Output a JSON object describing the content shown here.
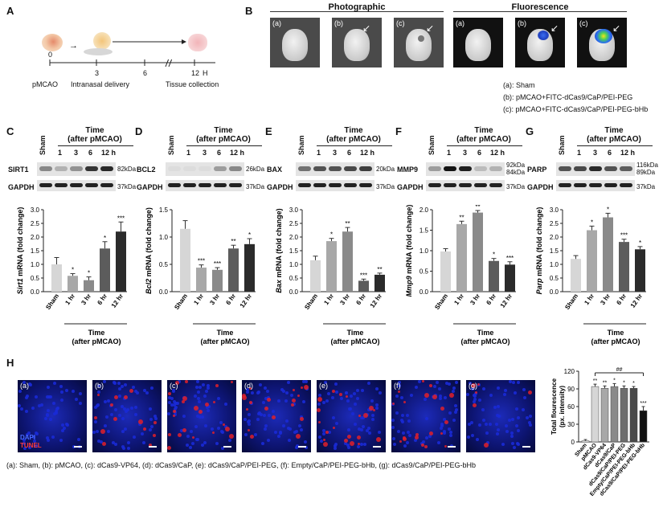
{
  "panel_labels": {
    "A": "A",
    "B": "B",
    "C": "C",
    "D": "D",
    "E": "E",
    "F": "F",
    "G": "G",
    "H": "H"
  },
  "timeline": {
    "ticks": [
      "0",
      "3",
      "6",
      "12"
    ],
    "unit": "H",
    "events": [
      "pMCAO",
      "Intranasal delivery",
      "Tissue collection"
    ]
  },
  "panel_b": {
    "photographic_title": "Photographic",
    "fluorescence_title": "Fluorescence",
    "image_labels": [
      "(a)",
      "(b)",
      "(c)"
    ],
    "legend": [
      "(a): Sham",
      "(b): pMCAO+FITC-dCas9/CaP/PEI-PEG",
      "(c): pMCAO+FITC-dCas9/CaP/PEI-PEG-bHb"
    ]
  },
  "blot_header": {
    "sham": "Sham",
    "time_title": "Time",
    "time_sub": "(after pMCAO)",
    "hours": [
      "1",
      "3",
      "6",
      "12 h"
    ]
  },
  "blots": [
    {
      "panel": "C",
      "protein": "SIRT1",
      "kda": [
        "82kDa"
      ],
      "gapdh": "GAPDH",
      "gapdh_kda": "37kDa"
    },
    {
      "panel": "D",
      "protein": "BCL2",
      "kda": [
        "26kDa"
      ],
      "gapdh": "GAPDH",
      "gapdh_kda": "37kDa"
    },
    {
      "panel": "E",
      "protein": "BAX",
      "kda": [
        "20kDa"
      ],
      "gapdh": "GAPDH",
      "gapdh_kda": "37kDa"
    },
    {
      "panel": "F",
      "protein": "MMP9",
      "kda": [
        "92kDa",
        "84kDa"
      ],
      "gapdh": "GAPDH",
      "gapdh_kda": "37kDa"
    },
    {
      "panel": "G",
      "protein": "PARP",
      "kda": [
        "116kDa",
        "89kDa"
      ],
      "gapdh": "GAPDH",
      "gapdh_kda": "37kDa"
    }
  ],
  "chart_data": [
    {
      "type": "bar",
      "panel": "C",
      "ylabel_gene": "Sirt1",
      "ylabel_rest": " mRNA (fold change)",
      "ylim": [
        0,
        3.0
      ],
      "yticks": [
        "0.0",
        "0.5",
        "1.0",
        "1.5",
        "2.0",
        "2.5",
        "3.0"
      ],
      "categories": [
        "Sham",
        "1 hr",
        "3 hr",
        "6 hr",
        "12 hr"
      ],
      "values": [
        1.0,
        0.58,
        0.42,
        1.58,
        2.2
      ],
      "errors": [
        0.25,
        0.08,
        0.12,
        0.25,
        0.35
      ],
      "sig": [
        "",
        "*",
        "*",
        "*",
        "***"
      ],
      "xlabel": "Time",
      "xlabel_sub": "(after pMCAO)"
    },
    {
      "type": "bar",
      "panel": "D",
      "ylabel_gene": "Bcl2",
      "ylabel_rest": " mRNA (fold change)",
      "ylim": [
        0,
        1.5
      ],
      "yticks": [
        "0.0",
        "0.5",
        "1.0",
        "1.5"
      ],
      "categories": [
        "Sham",
        "1 hr",
        "3 hr",
        "6 hr",
        "12 hr"
      ],
      "values": [
        1.15,
        0.44,
        0.4,
        0.79,
        0.87
      ],
      "errors": [
        0.15,
        0.05,
        0.04,
        0.06,
        0.1
      ],
      "sig": [
        "",
        "***",
        "***",
        "**",
        "*"
      ],
      "xlabel": "Time",
      "xlabel_sub": "(after pMCAO)"
    },
    {
      "type": "bar",
      "panel": "E",
      "ylabel_gene": "Bax",
      "ylabel_rest": " mRNA (fold change)",
      "ylim": [
        0,
        3.0
      ],
      "yticks": [
        "0.0",
        "0.5",
        "1.0",
        "1.5",
        "2.0",
        "2.5",
        "3.0"
      ],
      "categories": [
        "Sham",
        "1 hr",
        "3 hr",
        "6 hr",
        "12 hr"
      ],
      "values": [
        1.15,
        1.85,
        2.2,
        0.4,
        0.62
      ],
      "errors": [
        0.15,
        0.1,
        0.15,
        0.06,
        0.06
      ],
      "sig": [
        "",
        "*",
        "**",
        "***",
        "**"
      ],
      "xlabel": "Time",
      "xlabel_sub": "(after pMCAO)"
    },
    {
      "type": "bar",
      "panel": "F",
      "ylabel_gene": "Mmp9",
      "ylabel_rest": " mRNA (fold change)",
      "ylim": [
        0,
        2.0
      ],
      "yticks": [
        "0.0",
        "0.5",
        "1.0",
        "1.5",
        "2.0"
      ],
      "categories": [
        "Sham",
        "1 hr",
        "3 hr",
        "6 hr",
        "12 hr"
      ],
      "values": [
        0.98,
        1.65,
        1.93,
        0.75,
        0.66
      ],
      "errors": [
        0.07,
        0.07,
        0.05,
        0.06,
        0.07
      ],
      "sig": [
        "",
        "**",
        "**",
        "*",
        "***"
      ],
      "xlabel": "Time",
      "xlabel_sub": "(after pMCAO)"
    },
    {
      "type": "bar",
      "panel": "G",
      "ylabel_gene": "Parp",
      "ylabel_rest": " mRNA (fold change)",
      "ylim": [
        0,
        3.0
      ],
      "yticks": [
        "0.0",
        "0.5",
        "1.0",
        "1.5",
        "2.0",
        "2.5",
        "3.0"
      ],
      "categories": [
        "Sham",
        "1 hr",
        "3 hr",
        "6 hr",
        "12 hr"
      ],
      "values": [
        1.2,
        2.25,
        2.72,
        1.82,
        1.55
      ],
      "errors": [
        0.12,
        0.15,
        0.15,
        0.1,
        0.1
      ],
      "sig": [
        "",
        "*",
        "*",
        "***",
        "*"
      ],
      "xlabel": "Time",
      "xlabel_sub": "(after pMCAO)"
    },
    {
      "type": "bar",
      "panel": "H",
      "ylabel": "Total flourescence",
      "ylabel2": "(px. intensity)",
      "ylim": [
        0,
        120
      ],
      "yticks": [
        "0",
        "30",
        "60",
        "90",
        "120"
      ],
      "categories": [
        "Sham",
        "pMCAO",
        "dCas9-VP64",
        "dCas9/CaP",
        "dCas9/CaP/PEI-PEG",
        "Empty/CaP/PEI-PEG-bHb",
        "dCas9/CaP/PEI-PEG-bHb"
      ],
      "values": [
        2,
        94,
        91,
        94,
        91,
        91,
        53
      ],
      "errors": [
        2,
        4,
        4,
        5,
        4,
        3,
        7
      ],
      "sig": [
        "",
        "**",
        "**",
        "*",
        "*",
        "*",
        "***"
      ],
      "bracket": "##"
    }
  ],
  "panel_h": {
    "image_labels": [
      "(a)",
      "(b)",
      "(c)",
      "(d)",
      "(e)",
      "(f)",
      "(g)"
    ],
    "stain_dapi": "DAPI",
    "stain_tunel": "TUNEL",
    "caption": "(a): Sham, (b): pMCAO, (c): dCas9-VP64, (d): dCas9/CaP, (e): dCas9/CaP/PEI-PEG, (f): Empty/CaP/PEI-PEG-bHb, (g): dCas9/CaP/PEI-PEG-bHb"
  },
  "colors": {
    "bar_shades": [
      "#d6d6d6",
      "#a8a8a8",
      "#8a8a8a",
      "#5c5c5c",
      "#2b2b2b"
    ],
    "dapi": "#1a2ad6",
    "tunel": "#e0202a"
  }
}
